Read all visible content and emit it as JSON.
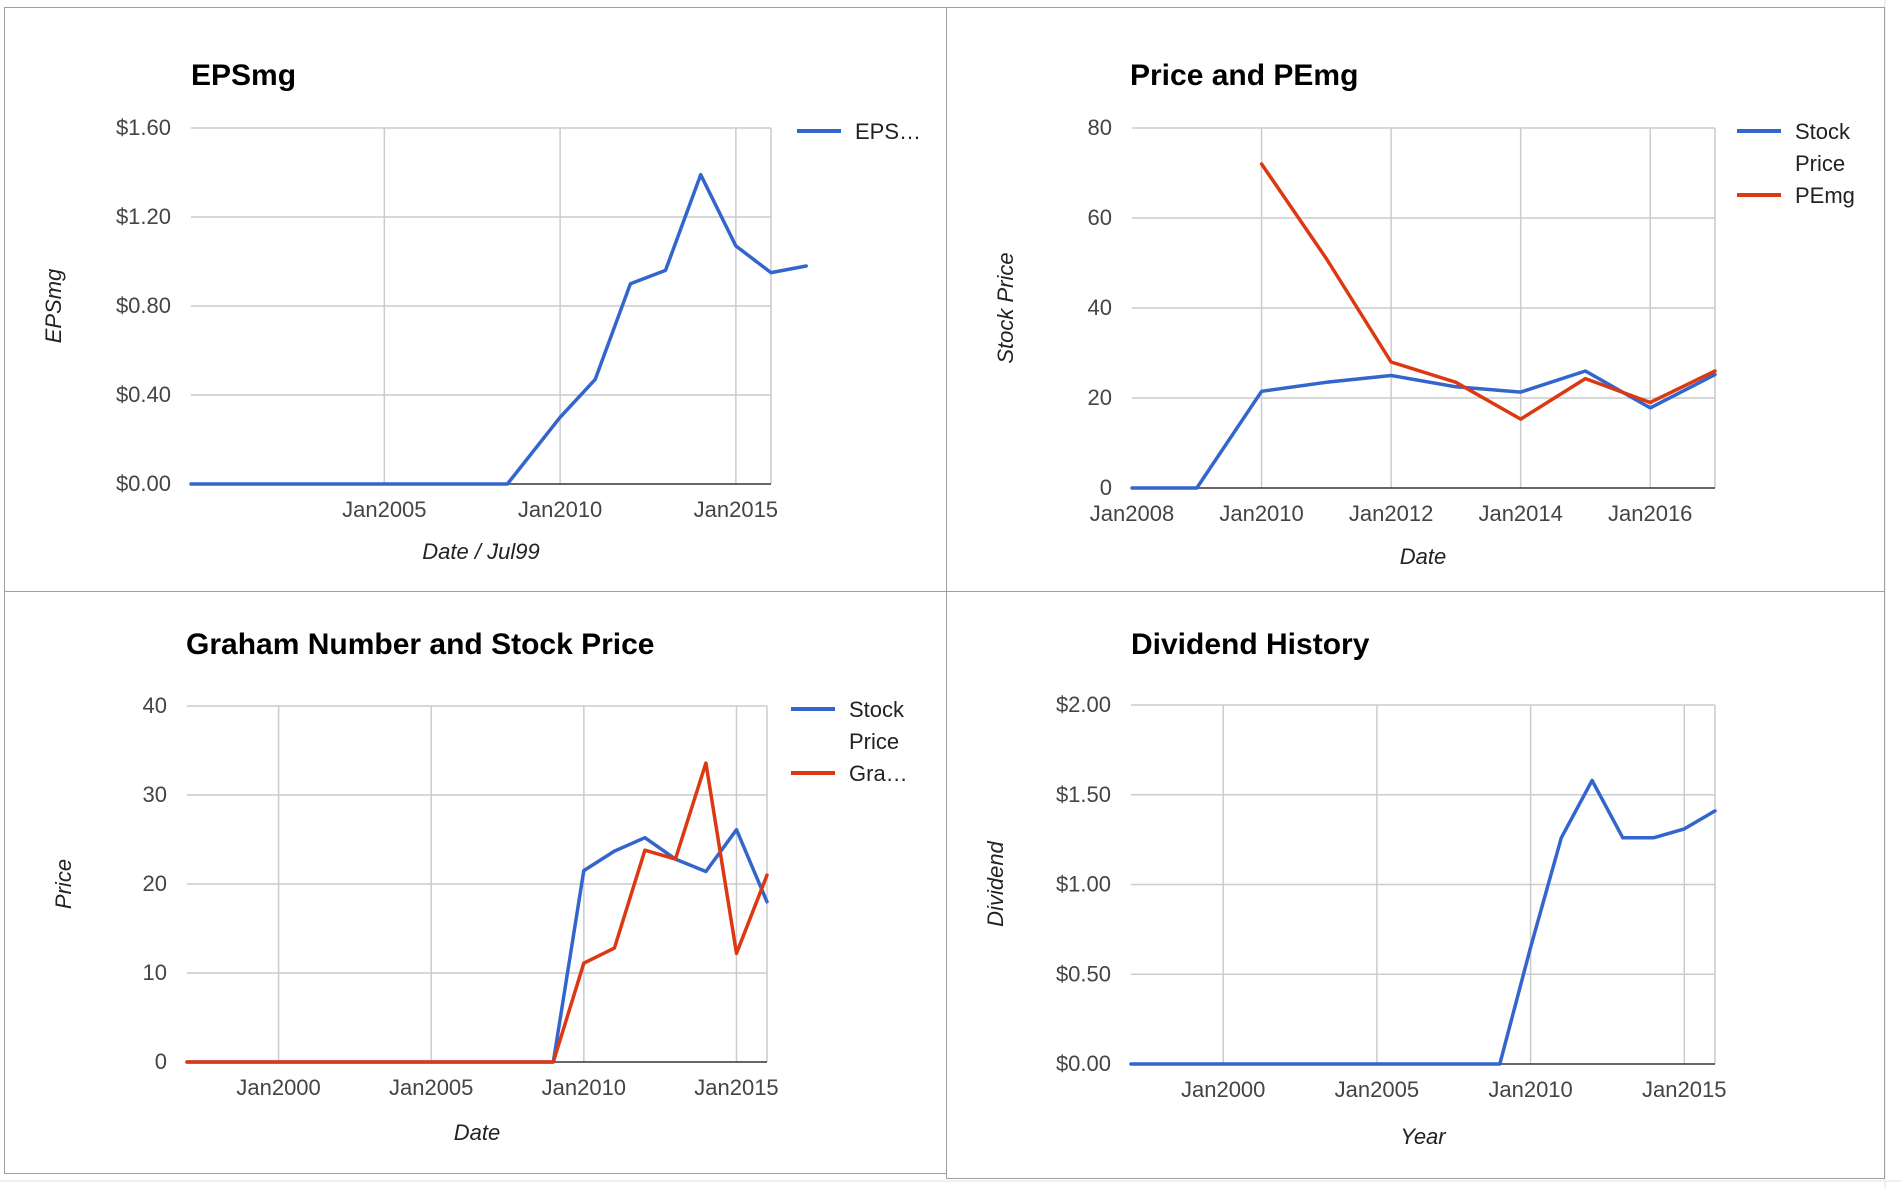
{
  "colors": {
    "blue": "#3366cc",
    "red": "#dc3912"
  },
  "chart_data": [
    {
      "type": "line",
      "title": "EPSmg",
      "xlabel": "Date / Jul99",
      "ylabel": "EPSmg",
      "ylim": [
        0,
        1.6
      ],
      "xlim": [
        "Jul1999",
        "Jan2016"
      ],
      "yticks": [
        "$0.00",
        "$0.40",
        "$0.80",
        "$1.20",
        "$1.60"
      ],
      "xticks": [
        "Jan2005",
        "Jan2010",
        "Jan2015"
      ],
      "legend": "right",
      "series": [
        {
          "name": "EPS…",
          "color": "#3366cc",
          "x": [
            "Jul1999",
            "Jul2000",
            "Jul2001",
            "Jul2002",
            "Jul2003",
            "Jul2004",
            "Jul2005",
            "Jul2006",
            "Jul2007",
            "Jul2008",
            "Jan2010",
            "Jan2011",
            "Jan2012",
            "Jan2013",
            "Jan2014",
            "Jan2015",
            "Jan2016",
            "Jan2017"
          ],
          "y": [
            0,
            0,
            0,
            0,
            0,
            0,
            0,
            0,
            0,
            0,
            0.3,
            0.47,
            0.9,
            0.96,
            1.39,
            1.07,
            0.95,
            0.98
          ]
        }
      ]
    },
    {
      "type": "line",
      "title": "Price and PEmg",
      "xlabel": "Date",
      "ylabel": "Stock Price",
      "ylim": [
        0,
        80
      ],
      "xlim": [
        "Jan2008",
        "Jan2017"
      ],
      "yticks": [
        "0",
        "20",
        "40",
        "60",
        "80"
      ],
      "xticks": [
        "Jan2008",
        "Jan2010",
        "Jan2012",
        "Jan2014",
        "Jan2016"
      ],
      "legend": "right",
      "series": [
        {
          "name": "Stock Price",
          "color": "#3366cc",
          "x": [
            "Jan2008",
            "Jan2009",
            "Jan2010",
            "Jan2011",
            "Jan2012",
            "Jan2013",
            "Jan2014",
            "Jan2015",
            "Jan2016",
            "Jan2017"
          ],
          "y": [
            0,
            0,
            21.5,
            23.5,
            25,
            22.5,
            21.3,
            26,
            17.8,
            25.2
          ]
        },
        {
          "name": "PEmg",
          "color": "#dc3912",
          "x": [
            "Jan2010",
            "Jan2011",
            "Jan2012",
            "Jan2013",
            "Jan2014",
            "Jan2015",
            "Jan2016",
            "Jan2017"
          ],
          "y": [
            72,
            51,
            28,
            23.5,
            15.3,
            24.3,
            19,
            26
          ]
        }
      ]
    },
    {
      "type": "line",
      "title": "Graham Number and Stock Price",
      "xlabel": "Date",
      "ylabel": "Price",
      "ylim": [
        0,
        40
      ],
      "xlim": [
        "Jan1997",
        "Jan2016"
      ],
      "yticks": [
        "0",
        "10",
        "20",
        "30",
        "40"
      ],
      "xticks": [
        "Jan2000",
        "Jan2005",
        "Jan2010",
        "Jan2015"
      ],
      "legend": "right",
      "series": [
        {
          "name": "Stock Price",
          "color": "#3366cc",
          "x": [
            "Jan1997",
            "Jan2009",
            "Jan2010",
            "Jan2011",
            "Jan2012",
            "Jan2013",
            "Jan2014",
            "Jan2015",
            "Jan2016"
          ],
          "y": [
            0,
            0,
            21.5,
            23.7,
            25.2,
            22.8,
            21.4,
            26.1,
            18
          ]
        },
        {
          "name": "Gra…",
          "color": "#dc3912",
          "x": [
            "Jan1997",
            "Jan2009",
            "Jan2010",
            "Jan2011",
            "Jan2012",
            "Jan2013",
            "Jan2014",
            "Jan2015",
            "Jan2016"
          ],
          "y": [
            0,
            0,
            11.1,
            12.8,
            23.8,
            22.8,
            33.6,
            12.2,
            21
          ]
        }
      ]
    },
    {
      "type": "line",
      "title": "Dividend History",
      "xlabel": "Year",
      "ylabel": "Dividend",
      "ylim": [
        0,
        2
      ],
      "xlim": [
        "Jan1997",
        "Jan2016"
      ],
      "yticks": [
        "$0.00",
        "$0.50",
        "$1.00",
        "$1.50",
        "$2.00"
      ],
      "xticks": [
        "Jan2000",
        "Jan2005",
        "Jan2010",
        "Jan2015"
      ],
      "legend": "none",
      "series": [
        {
          "color": "#3366cc",
          "x": [
            "Jan1997",
            "Jan2009",
            "Jan2010",
            "Jan2011",
            "Jan2012",
            "Jan2013",
            "Jan2014",
            "Jan2015",
            "Jan2016"
          ],
          "y": [
            0,
            0,
            0.65,
            1.26,
            1.58,
            1.26,
            1.26,
            1.31,
            1.41
          ]
        }
      ]
    }
  ]
}
